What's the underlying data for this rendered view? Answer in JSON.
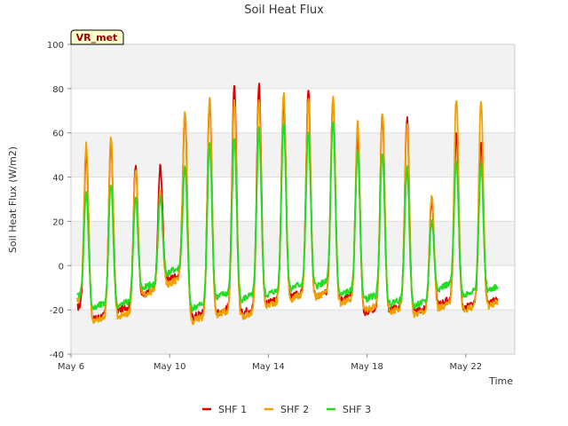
{
  "chart_data": {
    "type": "line",
    "title": "Soil Heat Flux",
    "xlabel": "Time",
    "ylabel": "Soil Heat Flux (W/m2)",
    "badge": "VR_met",
    "ylim": [
      -40,
      100
    ],
    "xlim": [
      0,
      18
    ],
    "yticks": [
      -40,
      -20,
      0,
      20,
      40,
      60,
      80,
      100
    ],
    "xticks": [
      {
        "x": 0,
        "label": "May 6"
      },
      {
        "x": 4,
        "label": "May 10"
      },
      {
        "x": 8,
        "label": "May 14"
      },
      {
        "x": 12,
        "label": "May 18"
      },
      {
        "x": 16,
        "label": "May 22"
      }
    ],
    "grid": "horizontal bands",
    "legend_position": "bottom",
    "colors": {
      "SHF 1": "#dd0000",
      "SHF 2": "#f0a000",
      "SHF 3": "#22dd22"
    },
    "daily_extremes_note": "Series are approximately diurnal; each day listed with [min, max] in W/m2 (days 0-16.5 from May 6).",
    "series": [
      {
        "name": "SHF 1",
        "daily_min": [
          -20,
          -24,
          -20,
          -13,
          -6,
          -23,
          -21,
          -21,
          -17,
          -14,
          -14,
          -15,
          -21,
          -20,
          -21,
          -17,
          -19,
          -17
        ],
        "daily_max": [
          52,
          56,
          45,
          45,
          68,
          75,
          81,
          82,
          75,
          79,
          76,
          59,
          69,
          67,
          30,
          60,
          57
        ]
      },
      {
        "name": "SHF 2",
        "daily_min": [
          -17,
          -25,
          -23,
          -13,
          -8,
          -25,
          -22,
          -23,
          -18,
          -15,
          -14,
          -17,
          -20,
          -21,
          -22,
          -19,
          -20,
          -18
        ],
        "daily_max": [
          55,
          58,
          44,
          35,
          70,
          76,
          75,
          75,
          78,
          76,
          76,
          65,
          70,
          65,
          32,
          76,
          75
        ]
      },
      {
        "name": "SHF 3",
        "daily_min": [
          -15,
          -19,
          -18,
          -10,
          -3,
          -19,
          -14,
          -15,
          -13,
          -10,
          -9,
          -13,
          -15,
          -17,
          -18,
          -10,
          -13,
          -11
        ],
        "daily_max": [
          33,
          37,
          30,
          31,
          44,
          55,
          58,
          62,
          65,
          60,
          65,
          52,
          52,
          44,
          20,
          47,
          45
        ]
      }
    ]
  }
}
